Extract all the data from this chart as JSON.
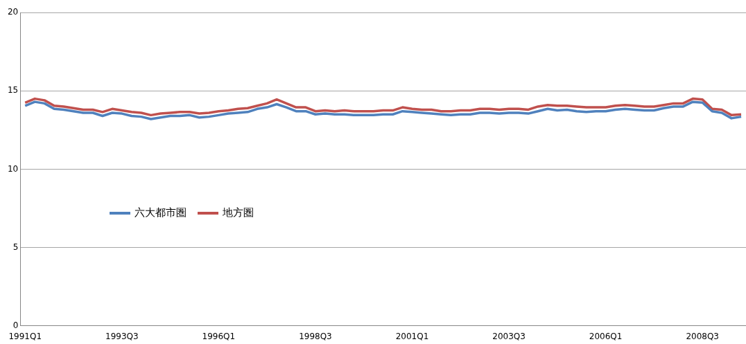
{
  "chart_data": {
    "type": "line",
    "categories": [
      "1991Q1",
      null,
      null,
      null,
      null,
      null,
      null,
      null,
      null,
      null,
      "1993Q3",
      null,
      null,
      null,
      null,
      null,
      null,
      null,
      null,
      null,
      "1996Q1",
      null,
      null,
      null,
      null,
      null,
      null,
      null,
      null,
      null,
      "1998Q3",
      null,
      null,
      null,
      null,
      null,
      null,
      null,
      null,
      null,
      "2001Q1",
      null,
      null,
      null,
      null,
      null,
      null,
      null,
      null,
      null,
      "2003Q3",
      null,
      null,
      null,
      null,
      null,
      null,
      null,
      null,
      null,
      "2006Q1",
      null,
      null,
      null,
      null,
      null,
      null,
      null,
      null,
      null,
      "2008Q3",
      null,
      null,
      null,
      null
    ],
    "series": [
      {
        "name": "六大都市圏",
        "color": "#4f81bd",
        "values": [
          14.05,
          14.3,
          14.2,
          13.85,
          13.8,
          13.7,
          13.6,
          13.6,
          13.4,
          13.6,
          13.55,
          13.4,
          13.35,
          13.2,
          13.3,
          13.4,
          13.4,
          13.45,
          13.3,
          13.35,
          13.45,
          13.55,
          13.6,
          13.65,
          13.85,
          13.95,
          14.15,
          13.95,
          13.7,
          13.7,
          13.5,
          13.55,
          13.5,
          13.5,
          13.45,
          13.45,
          13.45,
          13.5,
          13.5,
          13.7,
          13.65,
          13.6,
          13.55,
          13.5,
          13.45,
          13.5,
          13.5,
          13.6,
          13.6,
          13.55,
          13.6,
          13.6,
          13.55,
          13.7,
          13.85,
          13.75,
          13.8,
          13.7,
          13.65,
          13.7,
          13.7,
          13.8,
          13.85,
          13.8,
          13.75,
          13.75,
          13.9,
          14.0,
          14.0,
          14.3,
          14.25,
          13.7,
          13.6,
          13.25,
          13.35
        ]
      },
      {
        "name": "地方圏",
        "color": "#c0504d",
        "values": [
          14.25,
          14.5,
          14.4,
          14.05,
          14.0,
          13.9,
          13.8,
          13.8,
          13.65,
          13.85,
          13.75,
          13.65,
          13.6,
          13.45,
          13.55,
          13.6,
          13.65,
          13.65,
          13.55,
          13.6,
          13.7,
          13.75,
          13.85,
          13.9,
          14.05,
          14.2,
          14.45,
          14.2,
          13.95,
          13.95,
          13.7,
          13.75,
          13.7,
          13.75,
          13.7,
          13.7,
          13.7,
          13.75,
          13.75,
          13.95,
          13.85,
          13.8,
          13.8,
          13.7,
          13.7,
          13.75,
          13.75,
          13.85,
          13.85,
          13.8,
          13.85,
          13.85,
          13.8,
          14.0,
          14.1,
          14.05,
          14.05,
          14.0,
          13.95,
          13.95,
          13.95,
          14.05,
          14.1,
          14.05,
          14.0,
          14.0,
          14.1,
          14.2,
          14.2,
          14.5,
          14.45,
          13.85,
          13.8,
          13.45,
          13.5
        ]
      }
    ],
    "ylim": [
      0,
      20
    ],
    "yticks": [
      0,
      5,
      10,
      15,
      20
    ],
    "grid": "y",
    "legend": "left",
    "marker": "none",
    "line_style": "solid"
  }
}
